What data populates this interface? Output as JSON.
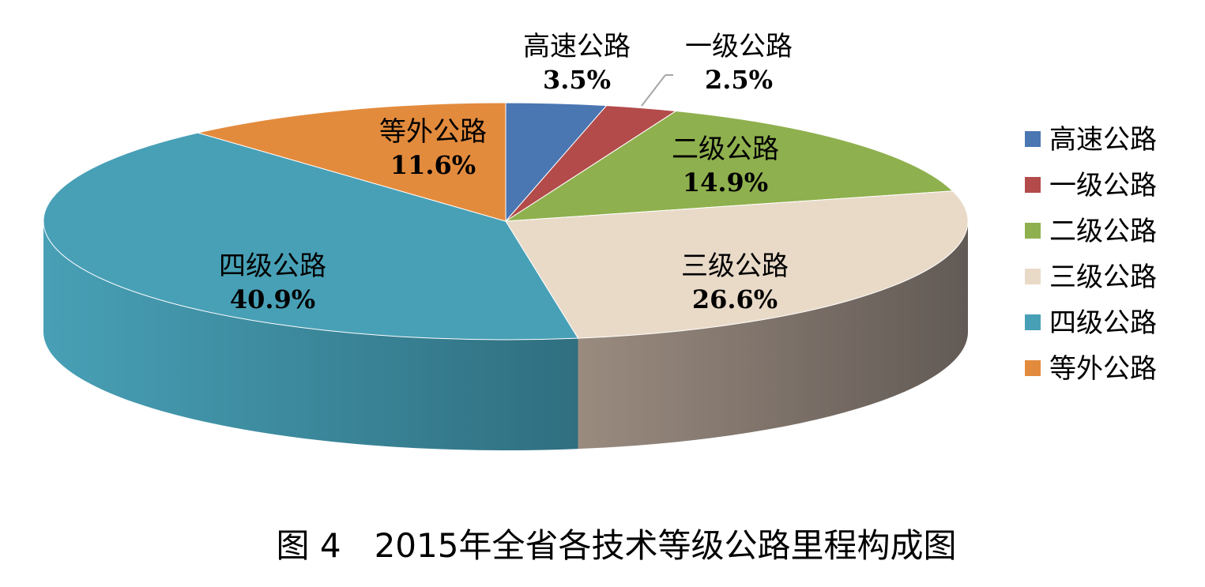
{
  "chart_data": {
    "type": "pie",
    "style": "3d",
    "title": "图 4　2015年全省各技术等级公路里程构成图",
    "legend_position": "right",
    "slices": [
      {
        "label": "高速公路",
        "value": 3.5,
        "value_text": "3.5%",
        "color": "#4a76b2"
      },
      {
        "label": "一级公路",
        "value": 2.5,
        "value_text": "2.5%",
        "color": "#b24b4a"
      },
      {
        "label": "二级公路",
        "value": 14.9,
        "value_text": "14.9%",
        "color": "#8fb04e"
      },
      {
        "label": "三级公路",
        "value": 26.6,
        "value_text": "26.6%",
        "color": "#e9dac8"
      },
      {
        "label": "四级公路",
        "value": 40.9,
        "value_text": "40.9%",
        "color": "#48a0b6"
      },
      {
        "label": "等外公路",
        "value": 11.6,
        "value_text": "11.6%",
        "color": "#e38b3d"
      }
    ],
    "side_colors": {
      "三级公路": [
        "#9a8b7f",
        "#625a55"
      ],
      "四级公路": [
        "#48a0b6",
        "#2f6f80"
      ]
    }
  }
}
